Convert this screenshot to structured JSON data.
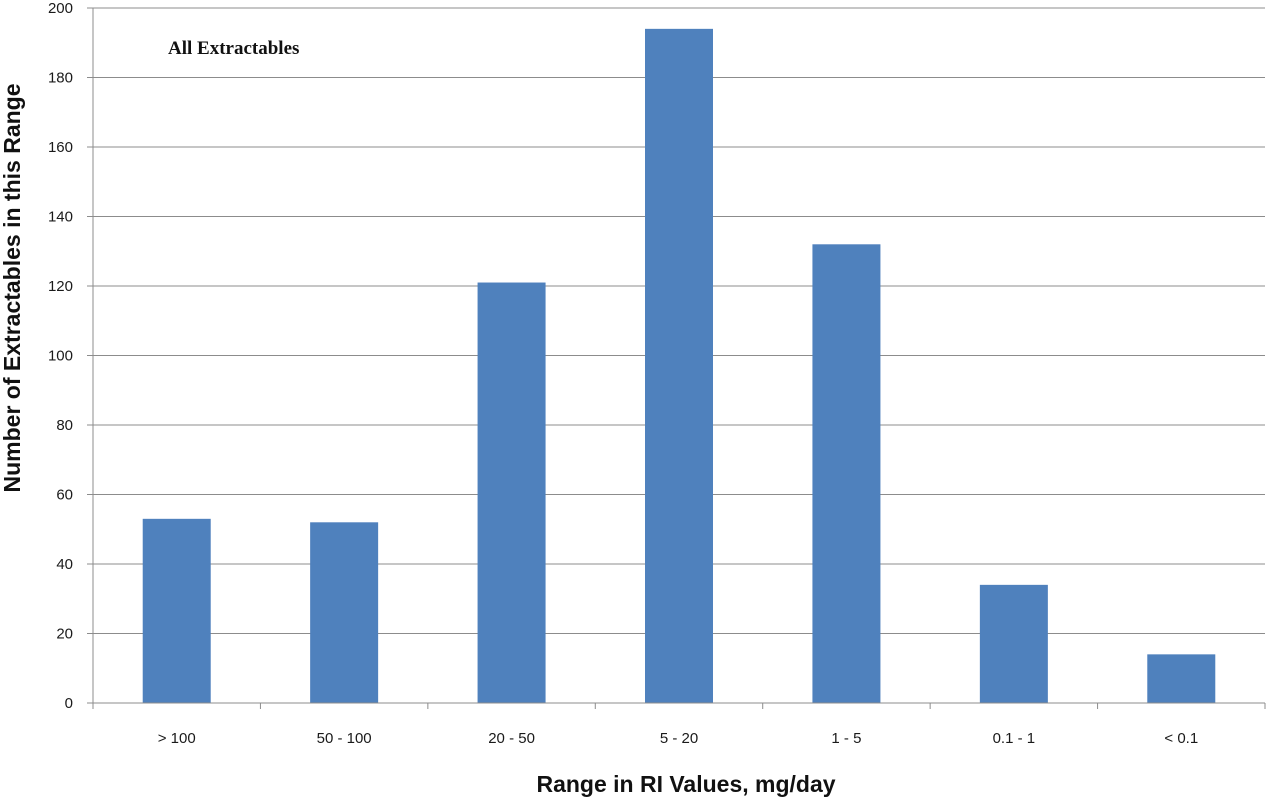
{
  "chart_data": {
    "type": "bar",
    "title": "All Extractables",
    "xlabel": "Range in RI Values, mg/day",
    "ylabel": "Number of Extractables in this Range",
    "categories": [
      "> 100",
      "50 - 100",
      "20 - 50",
      "5 - 20",
      "1 - 5",
      "0.1 - 1",
      "< 0.1"
    ],
    "values": [
      53,
      52,
      121,
      194,
      132,
      34,
      14
    ],
    "ylim": [
      0,
      200
    ],
    "yticks": [
      0,
      20,
      40,
      60,
      80,
      100,
      120,
      140,
      160,
      180,
      200
    ],
    "grid": true,
    "legend": "none",
    "bar_color": "#4f81bd",
    "grid_color": "#8c8c8c",
    "axis_color": "#8c8c8c"
  }
}
